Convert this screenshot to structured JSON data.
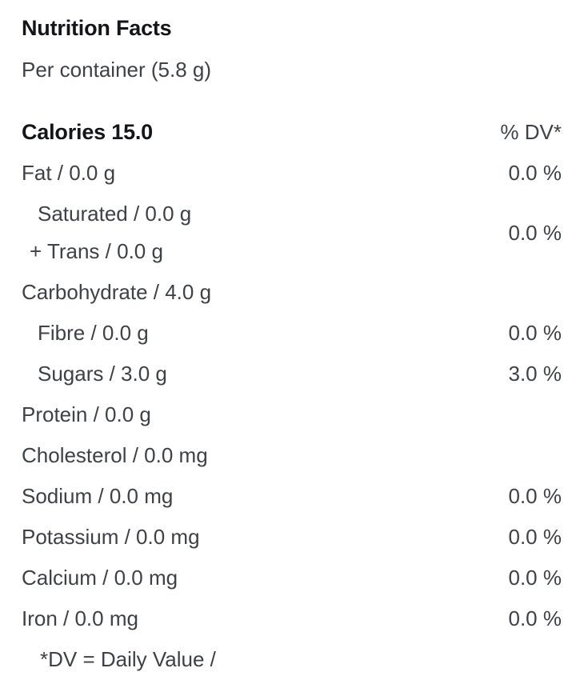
{
  "colors": {
    "background": "#ffffff",
    "heading_text": "#131518",
    "body_text": "#3e4145"
  },
  "header": {
    "title": "Nutrition Facts",
    "serving": "Per container (5.8 g)"
  },
  "calories": {
    "label": "Calories 15.0",
    "dv_header": "% DV*"
  },
  "rows": [
    {
      "type": "single",
      "label": "Fat / 0.0 g",
      "value": "0.0 %",
      "indent": false
    },
    {
      "type": "group",
      "lines": [
        "Saturated / 0.0 g",
        "+ Trans / 0.0 g"
      ],
      "value": "0.0 %",
      "indent": true
    },
    {
      "type": "single",
      "label": "Carbohydrate / 4.0 g",
      "value": "",
      "indent": false
    },
    {
      "type": "single",
      "label": "Fibre / 0.0 g",
      "value": "0.0 %",
      "indent": true
    },
    {
      "type": "single",
      "label": "Sugars / 3.0 g",
      "value": "3.0 %",
      "indent": true
    },
    {
      "type": "single",
      "label": "Protein / 0.0 g",
      "value": "",
      "indent": false
    },
    {
      "type": "single",
      "label": "Cholesterol / 0.0 mg",
      "value": "",
      "indent": false
    },
    {
      "type": "single",
      "label": "Sodium / 0.0 mg",
      "value": "0.0 %",
      "indent": false
    },
    {
      "type": "single",
      "label": "Potassium / 0.0 mg",
      "value": "0.0 %",
      "indent": false
    },
    {
      "type": "single",
      "label": "Calcium / 0.0 mg",
      "value": "0.0 %",
      "indent": false
    },
    {
      "type": "single",
      "label": "Iron / 0.0 mg",
      "value": "0.0 %",
      "indent": false
    }
  ],
  "footnote": "*DV = Daily Value /"
}
